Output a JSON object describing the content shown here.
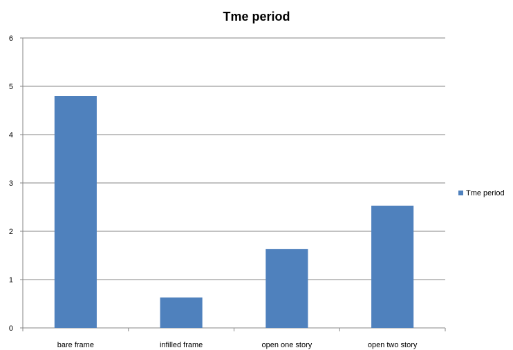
{
  "chart_data": {
    "type": "bar",
    "title": "Tme period",
    "xlabel": "",
    "ylabel": "",
    "categories": [
      "bare frame",
      "infilled frame",
      "open one story",
      "open two story"
    ],
    "series": [
      {
        "name": "Tme period",
        "values": [
          4.8,
          0.63,
          1.63,
          2.53
        ]
      }
    ],
    "ylim": [
      0,
      6
    ],
    "yticks": [
      "0",
      "1",
      "2",
      "3",
      "4",
      "5",
      "6"
    ],
    "grid": true,
    "legend_position": "right",
    "colors": {
      "bar": "#4F81BD",
      "grid": "#868686",
      "axis": "#868686"
    }
  }
}
